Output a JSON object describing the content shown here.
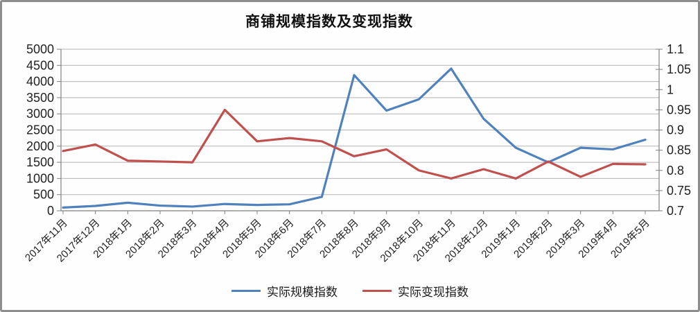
{
  "frame": {
    "border_color": "#8d8d8d",
    "background": "#fefefe"
  },
  "chart_data": {
    "type": "line",
    "title": "商铺规模指数及变现指数",
    "categories": [
      "2017年11月",
      "2017年12月",
      "2018年1月",
      "2018年2月",
      "2018年3月",
      "2018年4月",
      "2018年5月",
      "2018年6月",
      "2018年7月",
      "2018年8月",
      "2018年9月",
      "2018年10月",
      "2018年11月",
      "2018年12月",
      "2019年1月",
      "2019年2月",
      "2019年3月",
      "2019年4月",
      "2019年5月"
    ],
    "series": [
      {
        "name": "实际规模指数",
        "id": "scale-index",
        "axis": "left",
        "color": "#4f81bd",
        "values": [
          100,
          150,
          250,
          160,
          130,
          210,
          180,
          200,
          430,
          4200,
          3100,
          3450,
          4400,
          2850,
          1950,
          1500,
          1950,
          1900,
          2200
        ]
      },
      {
        "name": "实际变现指数",
        "id": "monetization-index",
        "axis": "right",
        "color": "#c0504d",
        "values": [
          0.848,
          0.864,
          0.824,
          0.822,
          0.82,
          0.95,
          0.872,
          0.88,
          0.872,
          0.835,
          0.852,
          0.8,
          0.78,
          0.803,
          0.78,
          0.822,
          0.784,
          0.816,
          0.815
        ]
      }
    ],
    "left_axis": {
      "min": 0,
      "max": 5000,
      "ticks": [
        "0",
        "500",
        "1000",
        "1500",
        "2000",
        "2500",
        "3000",
        "3500",
        "4000",
        "4500",
        "5000"
      ]
    },
    "right_axis": {
      "min": 0.7,
      "max": 1.1,
      "ticks": [
        "0.7",
        "0.75",
        "0.8",
        "0.85",
        "0.9",
        "0.95",
        "1",
        "1.05",
        "1.1"
      ]
    },
    "grid": true,
    "legend_position": "bottom",
    "colors": {
      "grid": "#b3b3b3",
      "axis": "#808080",
      "text": "#1f1f1f"
    }
  }
}
